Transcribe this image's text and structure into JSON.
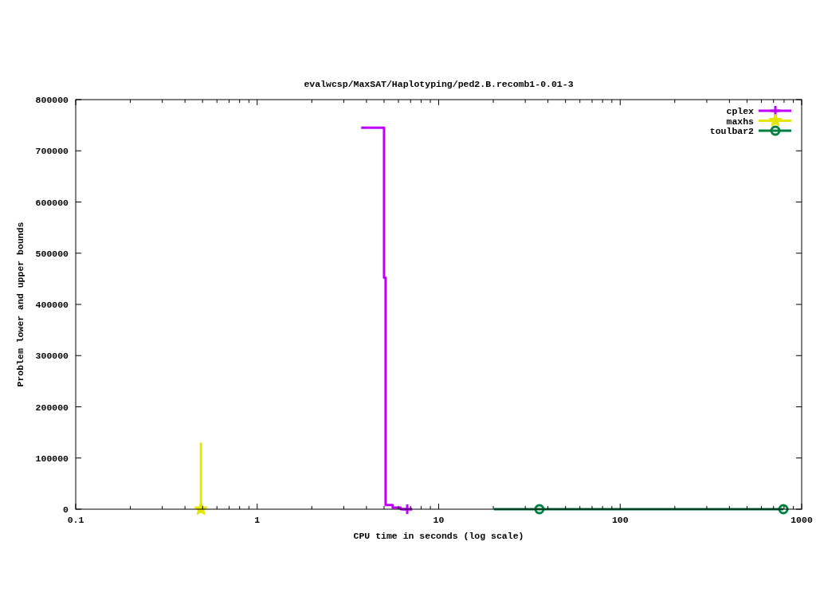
{
  "chart_data": {
    "type": "step",
    "title": "evalwcsp/MaxSAT/Haplotyping/ped2.B.recomb1-0.01-3",
    "xlabel": "CPU time in seconds (log scale)",
    "ylabel": "Problem lower and upper bounds",
    "log": "x",
    "xlim": [
      0.1,
      1000
    ],
    "xticks": [
      0.1,
      {
        "value": 0.2,
        "label": null
      },
      {
        "value": 0.3,
        "label": null
      },
      {
        "value": 0.4,
        "label": null
      },
      {
        "value": 0.5,
        "label": null
      },
      {
        "value": 0.6,
        "label": null
      },
      {
        "value": 0.7,
        "label": null
      },
      {
        "value": 0.8,
        "label": null
      },
      {
        "value": 0.9,
        "label": null
      },
      1,
      {
        "value": 2,
        "label": null
      },
      {
        "value": 3,
        "label": null
      },
      {
        "value": 4,
        "label": null
      },
      {
        "value": 5,
        "label": null
      },
      {
        "value": 6,
        "label": null
      },
      {
        "value": 7,
        "label": null
      },
      {
        "value": 8,
        "label": null
      },
      {
        "value": 9,
        "label": null
      },
      10,
      {
        "value": 20,
        "label": null
      },
      {
        "value": 30,
        "label": null
      },
      {
        "value": 40,
        "label": null
      },
      {
        "value": 50,
        "label": null
      },
      {
        "value": 60,
        "label": null
      },
      {
        "value": 70,
        "label": null
      },
      {
        "value": 80,
        "label": null
      },
      {
        "value": 90,
        "label": null
      },
      100,
      {
        "value": 200,
        "label": null
      },
      {
        "value": 300,
        "label": null
      },
      {
        "value": 400,
        "label": null
      },
      {
        "value": 500,
        "label": null
      },
      {
        "value": 600,
        "label": null
      },
      {
        "value": 700,
        "label": null
      },
      {
        "value": 800,
        "label": null
      },
      {
        "value": 900,
        "label": null
      },
      1000
    ],
    "ylim": [
      0,
      800000
    ],
    "yticks": [
      0,
      100000,
      200000,
      300000,
      400000,
      500000,
      600000,
      700000,
      800000
    ],
    "legend": "top right",
    "series": [
      {
        "color": "#c000ff",
        "x": [
          3.74,
          5.0,
          5.1,
          5.58,
          6.18,
          7.15
        ],
        "values": [
          745000,
          452000,
          8000,
          3000,
          0,
          0
        ]
      },
      {
        "name": "cplex",
        "type": "scatter",
        "color": "#c000ff",
        "marker": "cross",
        "x": [
          6.71
        ],
        "values": [
          0
        ]
      },
      {
        "color": "#e6e600",
        "x": [
          0.49,
          0.49
        ],
        "values": [
          130000,
          0
        ]
      },
      {
        "name": "maxhs",
        "type": "scatter",
        "color": "#e6e600",
        "marker": "star",
        "x": [
          0.49
        ],
        "values": [
          0
        ]
      },
      {
        "color": "#008040",
        "x": [
          20.2,
          35.9,
          793
        ],
        "values": [
          0,
          0,
          0
        ]
      },
      {
        "name": "toulbar2",
        "type": "scatter",
        "color": "#008040",
        "marker": "circle",
        "x": [
          35.9,
          793
        ],
        "values": [
          0,
          0
        ]
      }
    ]
  }
}
